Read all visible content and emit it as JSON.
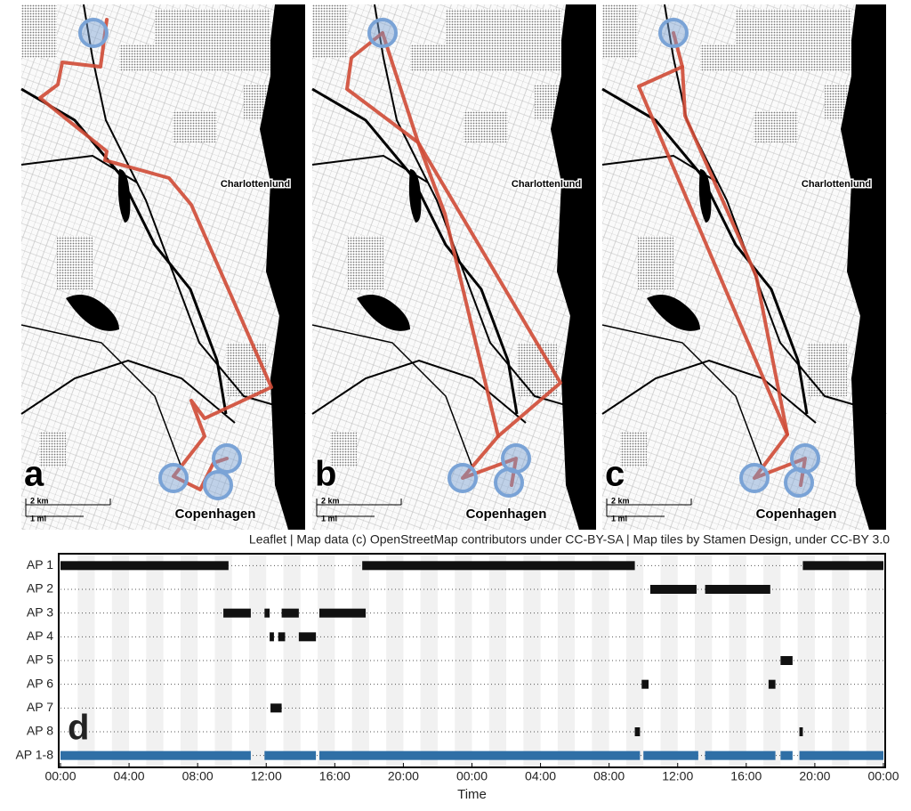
{
  "maps": [
    {
      "letter": "a",
      "labels": [
        "Charlottenlund",
        "Copenhagen"
      ],
      "scale": [
        "2 km",
        "1 mi"
      ]
    },
    {
      "letter": "b",
      "labels": [
        "Charlottenlund",
        "Copenhagen"
      ],
      "scale": [
        "2 km",
        "1 mi"
      ]
    },
    {
      "letter": "c",
      "labels": [
        "Charlottenlund",
        "Copenhagen"
      ],
      "scale": [
        "2 km",
        "1 mi"
      ]
    }
  ],
  "attribution": "Leaflet | Map data (c) OpenStreetMap contributors under CC-BY-SA | Map tiles by Stamen Design, under CC-BY 3.0",
  "chart_data": {
    "type": "timeline",
    "panel_letter": "d",
    "xlabel": "Time",
    "xlim": [
      0,
      48
    ],
    "xticks": [
      {
        "value": 0,
        "label": "00:00"
      },
      {
        "value": 4,
        "label": "04:00"
      },
      {
        "value": 8,
        "label": "08:00"
      },
      {
        "value": 12,
        "label": "12:00"
      },
      {
        "value": 16,
        "label": "16:00"
      },
      {
        "value": 20,
        "label": "20:00"
      },
      {
        "value": 24,
        "label": "00:00"
      },
      {
        "value": 28,
        "label": "04:00"
      },
      {
        "value": 32,
        "label": "08:00"
      },
      {
        "value": 36,
        "label": "12:00"
      },
      {
        "value": 40,
        "label": "16:00"
      },
      {
        "value": 44,
        "label": "20:00"
      },
      {
        "value": 48,
        "label": "00:00"
      }
    ],
    "series": [
      {
        "name": "AP 1",
        "color": "#111111",
        "intervals": [
          [
            0,
            9.8
          ],
          [
            17.6,
            33.5
          ],
          [
            43.3,
            48
          ]
        ]
      },
      {
        "name": "AP 2",
        "color": "#111111",
        "intervals": [
          [
            34.4,
            37.1
          ],
          [
            37.6,
            41.4
          ]
        ]
      },
      {
        "name": "AP 3",
        "color": "#111111",
        "intervals": [
          [
            9.5,
            11.1
          ],
          [
            11.9,
            12.2
          ],
          [
            12.9,
            13.9
          ],
          [
            15.1,
            17.8
          ]
        ]
      },
      {
        "name": "AP 4",
        "color": "#111111",
        "intervals": [
          [
            12.2,
            12.45
          ],
          [
            12.7,
            13.1
          ],
          [
            13.9,
            14.9
          ]
        ]
      },
      {
        "name": "AP 5",
        "color": "#111111",
        "intervals": [
          [
            42.0,
            42.7
          ]
        ]
      },
      {
        "name": "AP 6",
        "color": "#111111",
        "intervals": [
          [
            33.9,
            34.3
          ],
          [
            41.3,
            41.7
          ]
        ]
      },
      {
        "name": "AP 7",
        "color": "#111111",
        "intervals": [
          [
            12.25,
            12.9
          ]
        ]
      },
      {
        "name": "AP 8",
        "color": "#111111",
        "intervals": [
          [
            33.5,
            33.8
          ],
          [
            43.1,
            43.3
          ]
        ]
      },
      {
        "name": "AP 1-8",
        "color": "#2f6fa6",
        "intervals": [
          [
            0,
            11.1
          ],
          [
            11.9,
            14.9
          ],
          [
            15.1,
            33.8
          ],
          [
            34.0,
            37.2
          ],
          [
            37.6,
            41.7
          ],
          [
            42.0,
            42.7
          ],
          [
            43.1,
            48
          ]
        ]
      }
    ]
  }
}
